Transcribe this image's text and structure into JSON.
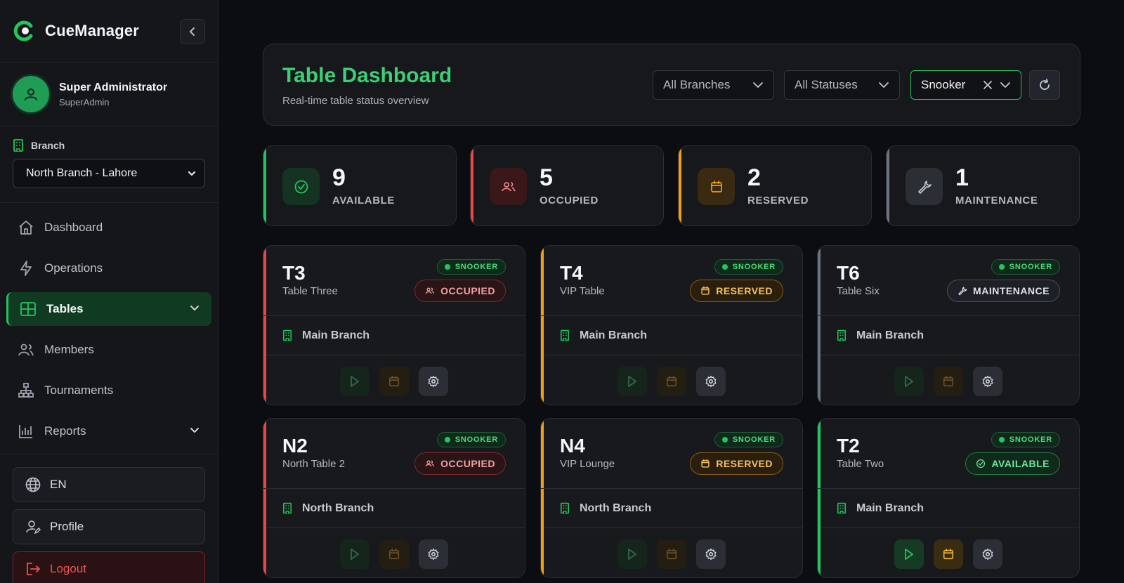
{
  "app": {
    "name": "CueManager"
  },
  "user": {
    "name": "Super Administrator",
    "role": "SuperAdmin"
  },
  "branch": {
    "label": "Branch",
    "selected": "North Branch - Lahore"
  },
  "nav": [
    {
      "label": "Dashboard"
    },
    {
      "label": "Operations"
    },
    {
      "label": "Tables"
    },
    {
      "label": "Members"
    },
    {
      "label": "Tournaments"
    },
    {
      "label": "Reports"
    }
  ],
  "footer": {
    "language": "EN",
    "profile": "Profile",
    "logout": "Logout"
  },
  "header": {
    "title": "Table Dashboard",
    "subtitle": "Real-time table status overview",
    "filters": {
      "branch": "All Branches",
      "status": "All Statuses",
      "type": "Snooker"
    }
  },
  "stats": [
    {
      "value": "9",
      "label": "AVAILABLE",
      "color": "#22c55e"
    },
    {
      "value": "5",
      "label": "OCCUPIED",
      "color": "#ef4444"
    },
    {
      "value": "2",
      "label": "RESERVED",
      "color": "#f59e0b"
    },
    {
      "value": "1",
      "label": "MAINTENANCE",
      "color": "#6b7280"
    }
  ],
  "tables": [
    {
      "code": "T3",
      "name": "Table Three",
      "type": "SNOOKER",
      "status": "OCCUPIED",
      "branch": "Main Branch"
    },
    {
      "code": "T4",
      "name": "VIP Table",
      "type": "SNOOKER",
      "status": "RESERVED",
      "branch": "Main Branch"
    },
    {
      "code": "T6",
      "name": "Table Six",
      "type": "SNOOKER",
      "status": "MAINTENANCE",
      "branch": "Main Branch"
    },
    {
      "code": "N2",
      "name": "North Table 2",
      "type": "SNOOKER",
      "status": "OCCUPIED",
      "branch": "North Branch"
    },
    {
      "code": "N4",
      "name": "VIP Lounge",
      "type": "SNOOKER",
      "status": "RESERVED",
      "branch": "North Branch"
    },
    {
      "code": "T2",
      "name": "Table Two",
      "type": "SNOOKER",
      "status": "AVAILABLE",
      "branch": "Main Branch"
    }
  ]
}
